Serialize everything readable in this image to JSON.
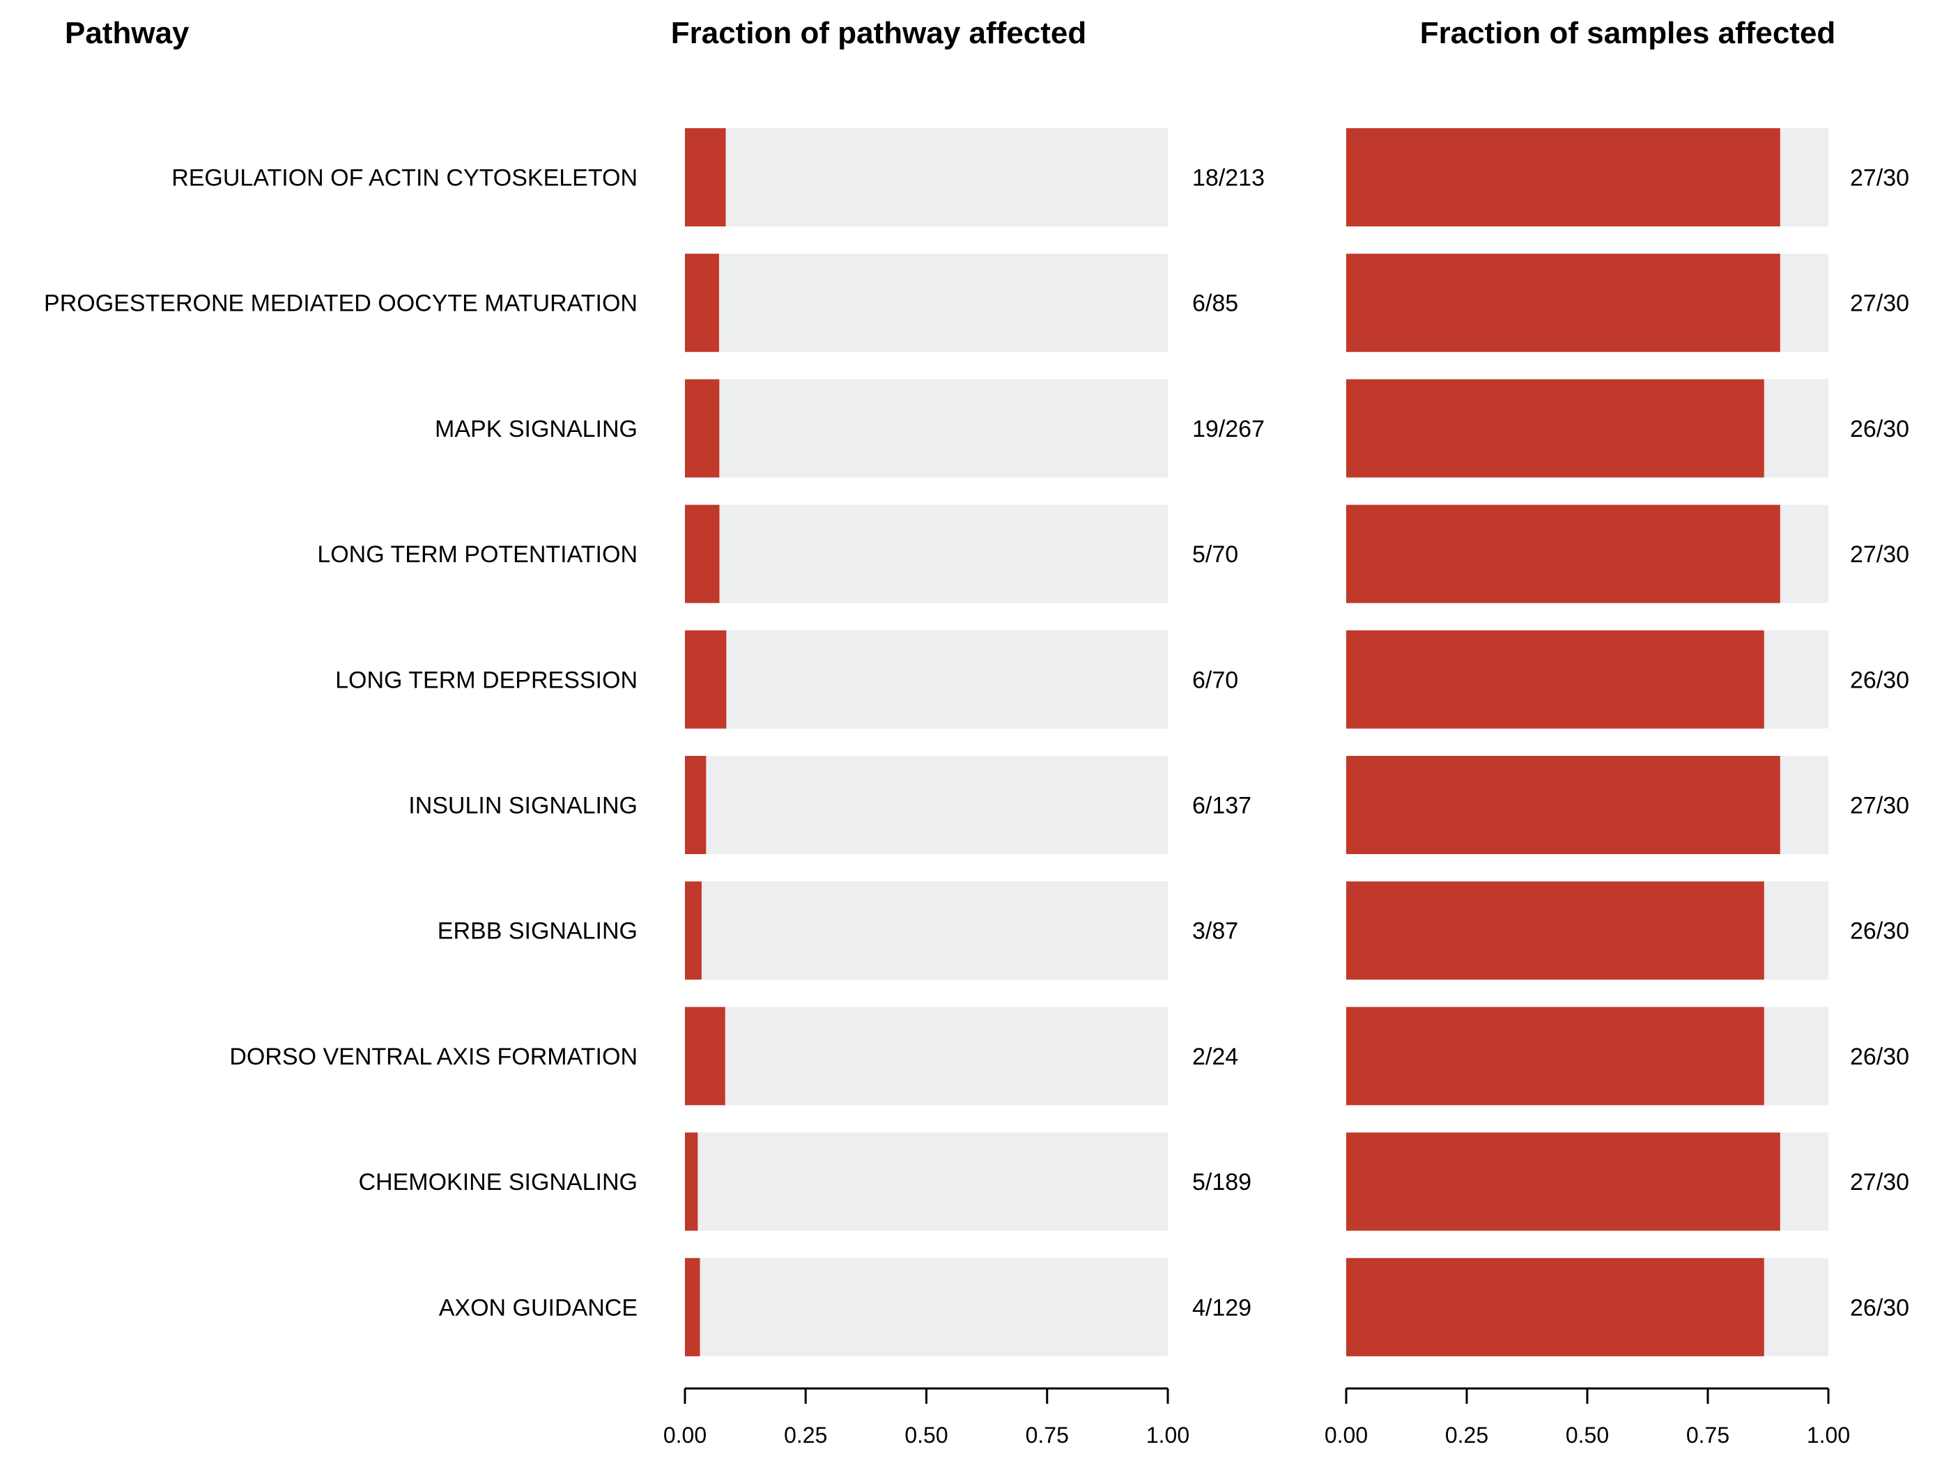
{
  "headers": {
    "pathway": "Pathway",
    "pathway_fraction": "Fraction of pathway affected",
    "sample_fraction": "Fraction of samples affected"
  },
  "colors": {
    "bar": "#c0392b",
    "track": "#eceeef",
    "axis": "#000000"
  },
  "chart_data": [
    {
      "type": "bar",
      "orientation": "horizontal",
      "title": "Fraction of pathway affected",
      "categories": [
        "REGULATION OF ACTIN CYTOSKELETON",
        "PROGESTERONE MEDIATED OOCYTE MATURATION",
        "MAPK SIGNALING",
        "LONG TERM POTENTIATION",
        "LONG TERM DEPRESSION",
        "INSULIN SIGNALING",
        "ERBB SIGNALING",
        "DORSO VENTRAL AXIS FORMATION",
        "CHEMOKINE SIGNALING",
        "AXON GUIDANCE"
      ],
      "values": [
        0.0845,
        0.0706,
        0.0712,
        0.0714,
        0.0857,
        0.0438,
        0.0345,
        0.0833,
        0.0265,
        0.031
      ],
      "counts": [
        "18/213",
        "6/85",
        "19/267",
        "5/70",
        "6/70",
        "6/137",
        "3/87",
        "2/24",
        "5/189",
        "4/129"
      ],
      "xlim": [
        0,
        1
      ],
      "xticks": [
        "0.00",
        "0.25",
        "0.50",
        "0.75",
        "1.00"
      ],
      "grid": false
    },
    {
      "type": "bar",
      "orientation": "horizontal",
      "title": "Fraction of samples affected",
      "categories": [
        "REGULATION OF ACTIN CYTOSKELETON",
        "PROGESTERONE MEDIATED OOCYTE MATURATION",
        "MAPK SIGNALING",
        "LONG TERM POTENTIATION",
        "LONG TERM DEPRESSION",
        "INSULIN SIGNALING",
        "ERBB SIGNALING",
        "DORSO VENTRAL AXIS FORMATION",
        "CHEMOKINE SIGNALING",
        "AXON GUIDANCE"
      ],
      "values": [
        0.9,
        0.9,
        0.8667,
        0.9,
        0.8667,
        0.9,
        0.8667,
        0.8667,
        0.9,
        0.8667
      ],
      "counts": [
        "27/30",
        "27/30",
        "26/30",
        "27/30",
        "26/30",
        "27/30",
        "26/30",
        "26/30",
        "27/30",
        "26/30"
      ],
      "xlim": [
        0,
        1
      ],
      "xticks": [
        "0.00",
        "0.25",
        "0.50",
        "0.75",
        "1.00"
      ],
      "grid": false
    }
  ]
}
